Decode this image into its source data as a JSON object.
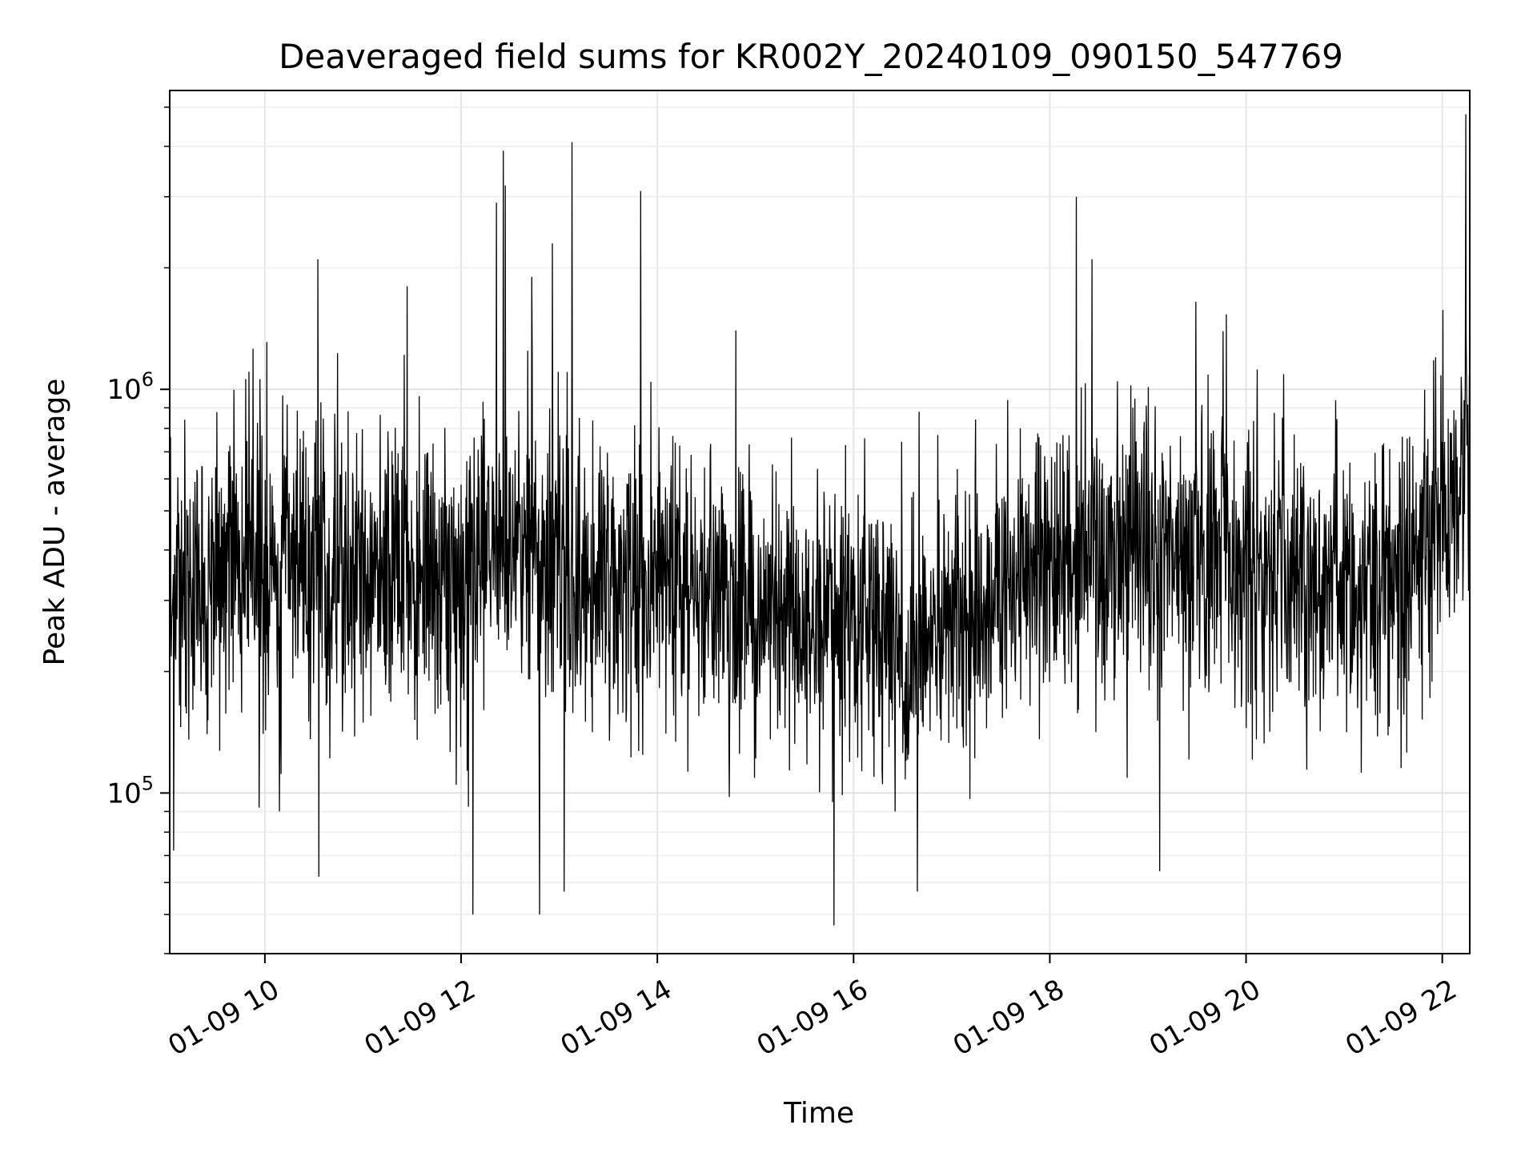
{
  "chart_data": {
    "type": "line",
    "title": "Deaveraged field sums for KR002Y_20240109_090150_547769",
    "xlabel": "Time",
    "ylabel": "Peak ADU - average",
    "x_tick_labels": [
      "01-09 10",
      "01-09 12",
      "01-09 14",
      "01-09 16",
      "01-09 18",
      "01-09 20",
      "01-09 22"
    ],
    "x_tick_hours": [
      10,
      12,
      14,
      16,
      18,
      20,
      22
    ],
    "y_tick_labels": [
      {
        "base": "10",
        "exp": "5",
        "value": 100000
      },
      {
        "base": "10",
        "exp": "6",
        "value": 1000000
      }
    ],
    "xlim_hours": [
      9.03,
      22.28
    ],
    "ylim": [
      40000,
      5500000
    ],
    "yscale": "log",
    "grid": true,
    "line_color": "#000000",
    "series": [
      {
        "anchors": [
          {
            "t": 9.03,
            "median": 330000
          },
          {
            "t": 10.0,
            "median": 380000
          },
          {
            "t": 11.0,
            "median": 340000
          },
          {
            "t": 12.0,
            "median": 330000
          },
          {
            "t": 12.4,
            "median": 420000
          },
          {
            "t": 13.0,
            "median": 360000
          },
          {
            "t": 14.0,
            "median": 330000
          },
          {
            "t": 15.0,
            "median": 300000
          },
          {
            "t": 16.0,
            "median": 260000
          },
          {
            "t": 16.7,
            "median": 230000
          },
          {
            "t": 17.5,
            "median": 330000
          },
          {
            "t": 18.5,
            "median": 380000
          },
          {
            "t": 19.5,
            "median": 420000
          },
          {
            "t": 20.5,
            "median": 340000
          },
          {
            "t": 21.5,
            "median": 330000
          },
          {
            "t": 22.0,
            "median": 500000
          },
          {
            "t": 22.28,
            "median": 560000
          }
        ],
        "spikes": [
          {
            "t": 10.54,
            "value": 2100000
          },
          {
            "t": 11.45,
            "value": 1800000
          },
          {
            "t": 12.36,
            "value": 2900000
          },
          {
            "t": 12.43,
            "value": 3900000
          },
          {
            "t": 12.45,
            "value": 3200000
          },
          {
            "t": 12.72,
            "value": 1900000
          },
          {
            "t": 12.93,
            "value": 2300000
          },
          {
            "t": 13.13,
            "value": 4100000
          },
          {
            "t": 13.83,
            "value": 3100000
          },
          {
            "t": 14.8,
            "value": 1400000
          },
          {
            "t": 18.27,
            "value": 3000000
          },
          {
            "t": 18.43,
            "value": 2100000
          },
          {
            "t": 22.24,
            "value": 4800000
          }
        ],
        "dips": [
          {
            "t": 9.07,
            "value": 72000
          },
          {
            "t": 10.55,
            "value": 62000
          },
          {
            "t": 12.12,
            "value": 50000
          },
          {
            "t": 12.8,
            "value": 50000
          },
          {
            "t": 13.05,
            "value": 57000
          },
          {
            "t": 15.8,
            "value": 47000
          },
          {
            "t": 16.65,
            "value": 57000
          },
          {
            "t": 19.12,
            "value": 64000
          }
        ]
      }
    ]
  }
}
